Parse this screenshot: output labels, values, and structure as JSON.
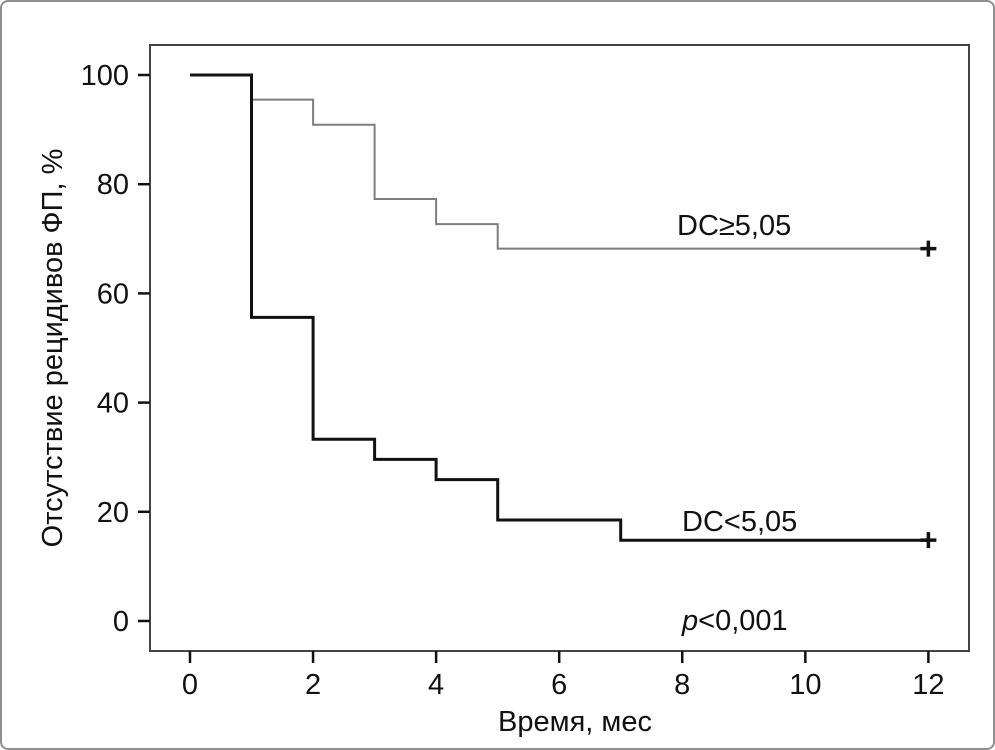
{
  "chart_data": {
    "type": "line",
    "subtype": "kaplan-meier-step-survival",
    "title": "",
    "x_axis": {
      "title": "Время, мес",
      "ticks": [
        0,
        2,
        4,
        6,
        8,
        10,
        12
      ],
      "range": [
        -0.65,
        12.66
      ],
      "grid": false
    },
    "y_axis": {
      "title": "Отсутствие рецидивов ФП, %",
      "ticks": [
        100,
        80,
        60,
        40,
        20,
        0
      ],
      "range": [
        -5.5,
        105.5
      ],
      "grid": false
    },
    "legend_position": "inline-annotations",
    "colors": {
      "upper_series": "#7d7d7d",
      "lower_series": "#111111",
      "frame": "#444444",
      "censor_mark": "#111111"
    },
    "series": [
      {
        "name": "DC≥5,05",
        "color_key": "upper_series",
        "stroke_width": 2,
        "points": [
          [
            0,
            100
          ],
          [
            1,
            100
          ],
          [
            1,
            95.5
          ],
          [
            2,
            95.5
          ],
          [
            2,
            90.9
          ],
          [
            3,
            90.9
          ],
          [
            3,
            77.3
          ],
          [
            4,
            77.3
          ],
          [
            4,
            72.7
          ],
          [
            5,
            72.7
          ],
          [
            5,
            68.2
          ],
          [
            12,
            68.2
          ]
        ],
        "censored": [
          [
            12,
            68.2
          ]
        ]
      },
      {
        "name": "DC<5,05",
        "color_key": "lower_series",
        "stroke_width": 3,
        "points": [
          [
            0,
            100
          ],
          [
            1,
            100
          ],
          [
            1,
            55.6
          ],
          [
            2,
            55.6
          ],
          [
            2,
            33.3
          ],
          [
            3,
            33.3
          ],
          [
            3,
            29.6
          ],
          [
            4,
            29.6
          ],
          [
            4,
            25.9
          ],
          [
            5,
            25.9
          ],
          [
            5,
            18.5
          ],
          [
            7,
            18.5
          ],
          [
            7,
            14.8
          ],
          [
            12,
            14.8
          ]
        ],
        "censored": [
          [
            12,
            14.8
          ]
        ]
      }
    ],
    "p_value": {
      "prefix": "p",
      "rest": "<0,001"
    }
  }
}
